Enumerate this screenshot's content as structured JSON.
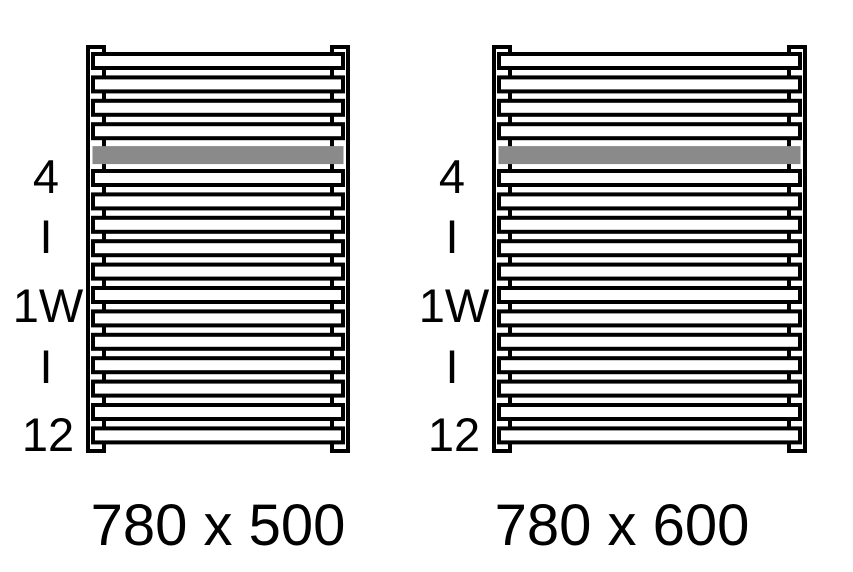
{
  "colors": {
    "line": "#000000",
    "accent_bar": "#8a8a8a",
    "background": "#ffffff"
  },
  "radiators": [
    {
      "bar_count": 17,
      "accent_bar_index": 4,
      "spec": {
        "line1": "4",
        "line2": "I",
        "line3": "1W",
        "line4": "I",
        "line5": "12"
      },
      "dimension": "780 x 500"
    },
    {
      "bar_count": 17,
      "accent_bar_index": 4,
      "spec": {
        "line1": "4",
        "line2": "I",
        "line3": "1W",
        "line4": "I",
        "line5": "12"
      },
      "dimension": "780 x 600"
    }
  ]
}
